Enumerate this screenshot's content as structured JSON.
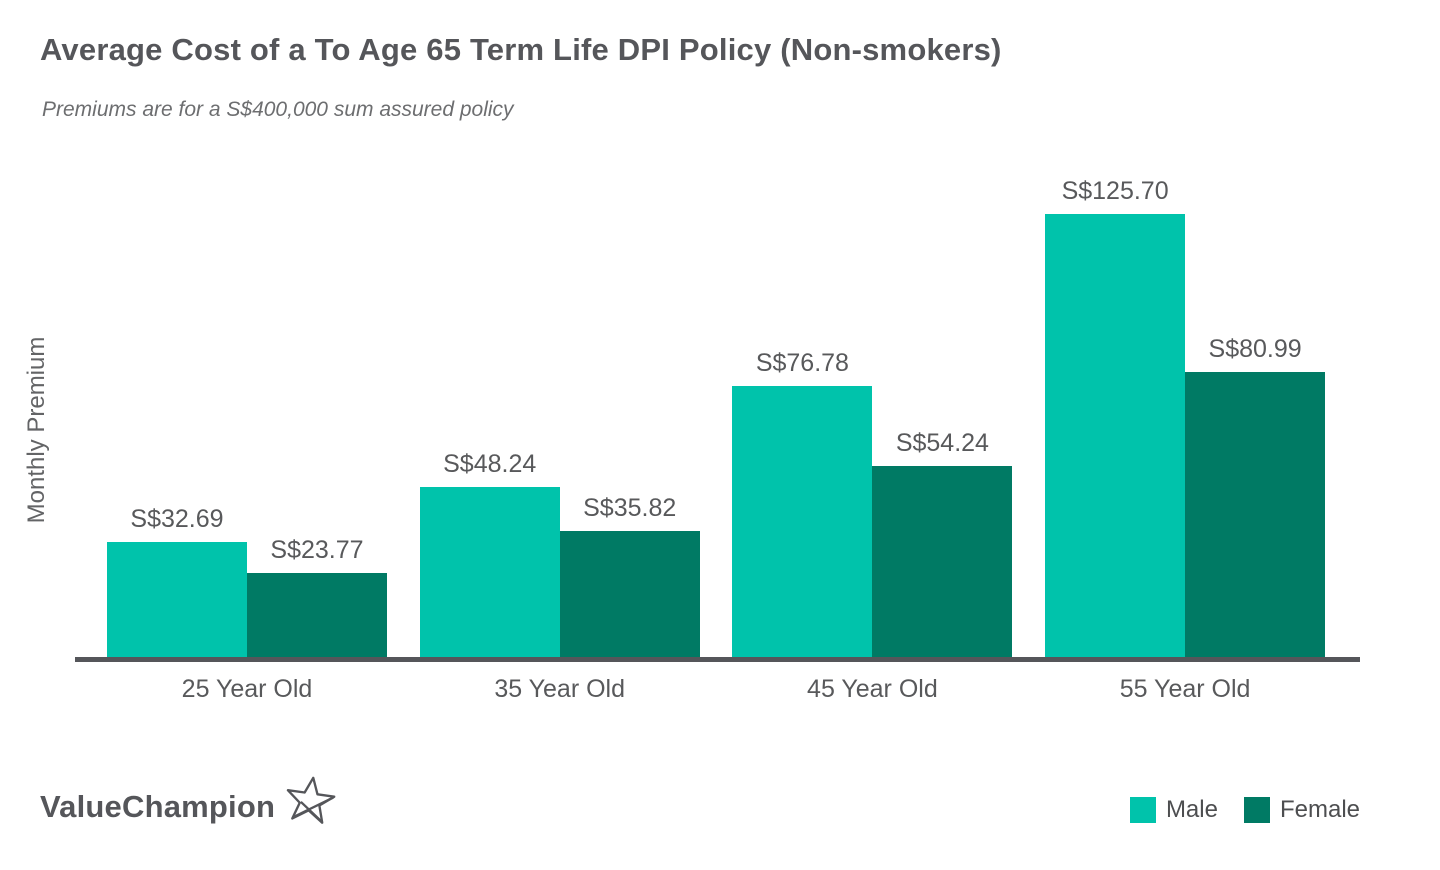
{
  "chart_data": {
    "type": "bar",
    "title": "Average Cost of a To Age 65 Term Life DPI Policy (Non-smokers)",
    "subtitle": "Premiums are for a S$400,000 sum assured policy",
    "ylabel": "Monthly Premium",
    "xlabel": "",
    "categories": [
      "25 Year Old",
      "35 Year Old",
      "45 Year Old",
      "55 Year Old"
    ],
    "series": [
      {
        "name": "Male",
        "color": "#00C3AB",
        "values": [
          32.69,
          48.24,
          76.78,
          125.7
        ],
        "labels": [
          "S$32.69",
          "S$48.24",
          "S$76.78",
          "S$125.70"
        ]
      },
      {
        "name": "Female",
        "color": "#007A64",
        "values": [
          23.77,
          35.82,
          54.24,
          80.99
        ],
        "labels": [
          "S$23.77",
          "S$35.82",
          "S$54.24",
          "S$80.99"
        ]
      }
    ],
    "currency_prefix": "S$",
    "ylim": [
      0,
      140
    ],
    "grid": false,
    "legend_position": "bottom-right",
    "axis_line_color": "#55565A",
    "value_label_color": "#58595B"
  },
  "legend": {
    "items": [
      {
        "label": "Male",
        "color": "#00C3AB"
      },
      {
        "label": "Female",
        "color": "#007A64"
      }
    ]
  },
  "logo": {
    "text": "ValueChampion",
    "icon": "star-outline-icon",
    "color": "#55565A"
  }
}
